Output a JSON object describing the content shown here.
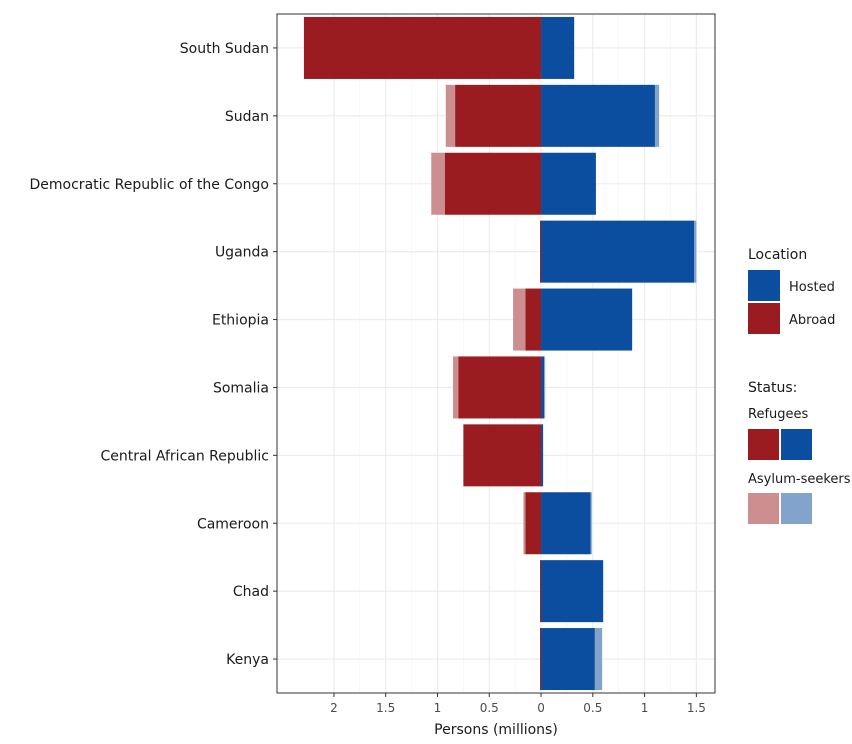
{
  "chart_data": {
    "type": "bar",
    "orientation": "horizontal",
    "stacked": true,
    "categories": [
      "South Sudan",
      "Sudan",
      "Democratic Republic of the Congo",
      "Uganda",
      "Ethiopia",
      "Somalia",
      "Central African Republic",
      "Cameroon",
      "Chad",
      "Kenya"
    ],
    "series": [
      {
        "location": "Abroad",
        "status": "Refugees",
        "color": "#9a1c20",
        "values": [
          -2.29,
          -0.83,
          -0.93,
          -0.01,
          -0.15,
          -0.8,
          -0.75,
          -0.15,
          -0.01,
          -0.01
        ]
      },
      {
        "location": "Abroad",
        "status": "Asylum-seekers",
        "color": "#cc8e8e",
        "values": [
          0.0,
          -0.09,
          -0.13,
          0.0,
          -0.12,
          -0.05,
          0.0,
          -0.02,
          0.0,
          0.0
        ]
      },
      {
        "location": "Hosted",
        "status": "Refugees",
        "color": "#0b4d9e",
        "values": [
          0.32,
          1.1,
          0.53,
          1.48,
          0.88,
          0.03,
          0.02,
          0.48,
          0.6,
          0.52
        ]
      },
      {
        "location": "Hosted",
        "status": "Asylum-seekers",
        "color": "#82a4cc",
        "values": [
          0.0,
          0.04,
          0.0,
          0.02,
          0.0,
          0.01,
          0.0,
          0.01,
          0.0,
          0.07
        ]
      }
    ],
    "x_ticks": [
      -2,
      -1.5,
      -1,
      -0.5,
      0,
      0.5,
      1,
      1.5
    ],
    "x_tick_labels": [
      "2",
      "1.5",
      "1",
      "0.5",
      "0",
      "0.5",
      "1",
      "1.5"
    ],
    "xlim": [
      -2.55,
      1.68
    ],
    "xlabel": "Persons (millions)",
    "ylabel": "",
    "grid": true,
    "legend": {
      "placement": "right",
      "location_title": "Location",
      "location_items": [
        {
          "label": "Hosted",
          "color": "#0b4d9e"
        },
        {
          "label": "Abroad",
          "color": "#9a1c20"
        }
      ],
      "status_title": "Status:",
      "status_items": [
        {
          "label": "Refugees",
          "colors": [
            "#9a1c20",
            "#0b4d9e"
          ]
        },
        {
          "label": "Asylum-seekers",
          "colors": [
            "#cc8e8e",
            "#82a4cc"
          ]
        }
      ]
    }
  }
}
